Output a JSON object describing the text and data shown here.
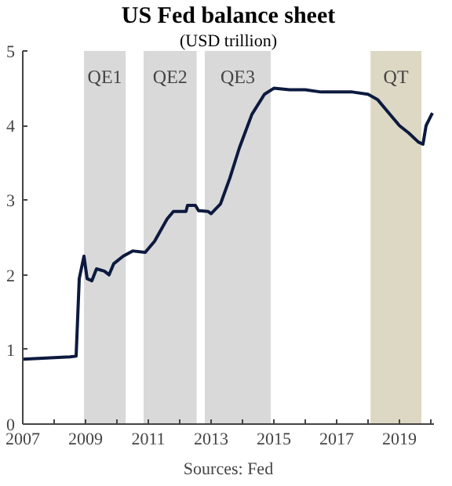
{
  "chart_data": {
    "type": "line",
    "title": "US Fed balance sheet",
    "subtitle": "(USD trillion)",
    "x": [
      2007.0,
      2007.5,
      2008.0,
      2008.5,
      2008.7,
      2008.8,
      2008.95,
      2009.05,
      2009.2,
      2009.35,
      2009.6,
      2009.75,
      2009.9,
      2010.2,
      2010.5,
      2010.9,
      2011.2,
      2011.6,
      2011.8,
      2012.2,
      2012.25,
      2012.5,
      2012.6,
      2012.9,
      2013.0,
      2013.3,
      2013.6,
      2013.9,
      2014.3,
      2014.7,
      2015.0,
      2015.5,
      2016.0,
      2016.5,
      2017.0,
      2017.5,
      2018.0,
      2018.3,
      2018.7,
      2019.0,
      2019.3,
      2019.6,
      2019.75,
      2019.85,
      2020.05
    ],
    "series": [
      {
        "color": "#0d1a3f",
        "values": [
          0.87,
          0.88,
          0.89,
          0.9,
          0.91,
          1.95,
          2.25,
          1.95,
          1.92,
          2.08,
          2.05,
          2.0,
          2.15,
          2.25,
          2.32,
          2.3,
          2.45,
          2.75,
          2.85,
          2.85,
          2.93,
          2.93,
          2.86,
          2.85,
          2.82,
          2.95,
          3.3,
          3.7,
          4.15,
          4.42,
          4.5,
          4.48,
          4.48,
          4.45,
          4.45,
          4.45,
          4.42,
          4.35,
          4.15,
          4.0,
          3.9,
          3.78,
          3.75,
          4.0,
          4.17
        ]
      }
    ],
    "xlim": [
      2007,
      2020.1
    ],
    "ylim": [
      0,
      5
    ],
    "xticks": [
      2007,
      {
        "value": 2008,
        "label": null
      },
      2009,
      {
        "value": 2010,
        "label": null
      },
      2011,
      {
        "value": 2012,
        "label": null
      },
      2013,
      {
        "value": 2014,
        "label": null
      },
      2015,
      {
        "value": 2016,
        "label": null
      },
      2017,
      {
        "value": 2018,
        "label": null
      },
      2019,
      {
        "value": 2020,
        "label": null
      }
    ],
    "yticks": [
      0,
      1,
      2,
      3,
      4,
      5
    ],
    "bands": [
      {
        "axis": "x",
        "from": 2008.95,
        "to": 2010.28,
        "label": "QE1",
        "color": "#d9d9d9"
      },
      {
        "axis": "x",
        "from": 2010.85,
        "to": 2012.54,
        "label": "QE2",
        "color": "#d9d9d9"
      },
      {
        "axis": "x",
        "from": 2012.8,
        "to": 2014.9,
        "label": "QE3",
        "color": "#d9d9d9"
      },
      {
        "axis": "x",
        "from": 2018.08,
        "to": 2019.7,
        "label": "QT",
        "color": "#ddd8c4"
      }
    ],
    "annotations": [
      "Sources: Fed"
    ],
    "grid": false,
    "line_style": "solid"
  }
}
